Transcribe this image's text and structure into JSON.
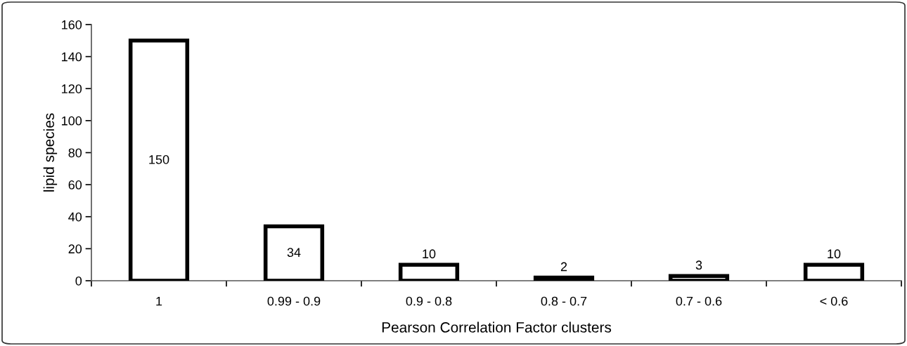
{
  "chart_data": {
    "type": "bar",
    "categories": [
      "1",
      "0.99 - 0.9",
      "0.9 - 0.8",
      "0.8 - 0.7",
      "0.7 - 0.6",
      "< 0.6"
    ],
    "values": [
      150,
      34,
      10,
      2,
      3,
      10
    ],
    "color": "#ffffff",
    "xlabel": "Pearson Correlation Factor clusters",
    "ylabel": "lipid species",
    "ylim": [
      0,
      160
    ],
    "yticks": [
      0,
      20,
      40,
      60,
      80,
      100,
      120,
      140,
      160
    ],
    "data_labels": true,
    "grid": false,
    "legend": false
  }
}
